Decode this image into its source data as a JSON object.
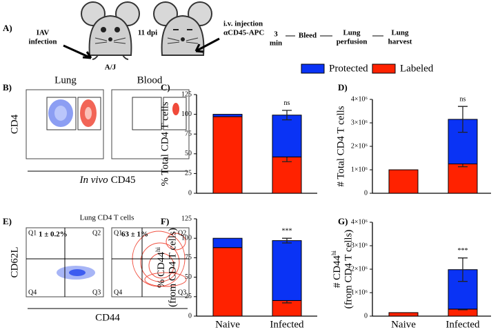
{
  "panel_labels": {
    "a": "A)",
    "b": "B)",
    "c": "C)",
    "d": "D)",
    "e": "E)",
    "f": "F)",
    "g": "G)"
  },
  "schematic": {
    "infection": [
      "IAV",
      "infection"
    ],
    "strain": "A/J",
    "dpi": "11 dpi",
    "injection": [
      "i.v. injection",
      "αCD45-APC"
    ],
    "steps": [
      [
        "3",
        "min"
      ],
      [
        "Bleed"
      ],
      [
        "Lung",
        "perfusion"
      ],
      [
        "Lung",
        "harvest"
      ]
    ]
  },
  "flow_b": {
    "titles": [
      "Lung",
      "Blood"
    ],
    "y_label": "CD4",
    "x_label_italic": "In vivo",
    "x_label": "CD45"
  },
  "flow_e": {
    "title": "Lung CD4 T cells",
    "y_label": "CD62L",
    "x_label": "CD44",
    "quadrants": [
      "Q1",
      "Q2",
      "Q4",
      "Q3"
    ],
    "stats": [
      "1 ± 0.2%",
      "63 ± 1%"
    ]
  },
  "chart_data": [
    {
      "type": "stacked_bar",
      "y_label": "% Total CD4 T cells",
      "categories": [
        null,
        null
      ],
      "series": [
        {
          "name": "Labeled",
          "color": "#ff2200",
          "values": [
            97,
            46
          ],
          "errors": [
            null,
            6
          ]
        },
        {
          "name": "Protected",
          "color": "#0a33f5",
          "values": [
            3,
            53
          ],
          "errors": [
            null,
            6
          ]
        }
      ],
      "ylim": [
        0,
        125
      ],
      "yticks": [
        0,
        25,
        50,
        75,
        100,
        125
      ],
      "annotation": "ns"
    },
    {
      "type": "stacked_bar",
      "y_label": "# Total CD4 T cells",
      "categories": [
        null,
        null
      ],
      "series": [
        {
          "name": "Labeled",
          "color": "#ff2200",
          "values": [
            1000000,
            1250000
          ],
          "errors": [
            null,
            120000
          ]
        },
        {
          "name": "Protected",
          "color": "#0a33f5",
          "values": [
            0,
            1900000
          ],
          "errors": [
            null,
            550000
          ]
        }
      ],
      "ylim": [
        0,
        4000000
      ],
      "yticks": [
        0,
        {
          "value": 1000000,
          "label": "1×10⁶"
        },
        {
          "value": 2000000,
          "label": "2×10⁶"
        },
        {
          "value": 3000000,
          "label": "3×10⁶"
        },
        {
          "value": 4000000,
          "label": "4×10⁶"
        }
      ],
      "annotation": "ns"
    },
    {
      "type": "stacked_bar",
      "y_label": "% CD44",
      "y_label_sup": "hi",
      "y_label_2": "(from CD4 T cells)",
      "categories": [
        "Naive",
        "Infected"
      ],
      "series": [
        {
          "name": "Labeled",
          "color": "#ff2200",
          "values": [
            88,
            20
          ],
          "errors": [
            null,
            3
          ]
        },
        {
          "name": "Protected",
          "color": "#0a33f5",
          "values": [
            12,
            77
          ],
          "errors": [
            null,
            3
          ]
        }
      ],
      "ylim": [
        0,
        125
      ],
      "yticks": [
        0,
        25,
        50,
        75,
        100,
        125
      ],
      "annotation": "***"
    },
    {
      "type": "stacked_bar",
      "y_label": "# CD44",
      "y_label_sup": "hi",
      "y_label_2": "(from CD4 T cells)",
      "categories": [
        "Naive",
        "Infected"
      ],
      "series": [
        {
          "name": "Labeled",
          "color": "#ff2200",
          "values": [
            150000,
            300000
          ],
          "errors": [
            null,
            30000
          ]
        },
        {
          "name": "Protected",
          "color": "#0a33f5",
          "values": [
            0,
            1680000
          ],
          "errors": [
            null,
            500000
          ]
        }
      ],
      "ylim": [
        0,
        4000000
      ],
      "yticks": [
        0,
        {
          "value": 1000000,
          "label": "1×10⁶"
        },
        {
          "value": 2000000,
          "label": "2×10⁶"
        },
        {
          "value": 3000000,
          "label": "3×10⁶"
        },
        {
          "value": 4000000,
          "label": "4×10⁶"
        }
      ],
      "annotation": "***"
    }
  ]
}
